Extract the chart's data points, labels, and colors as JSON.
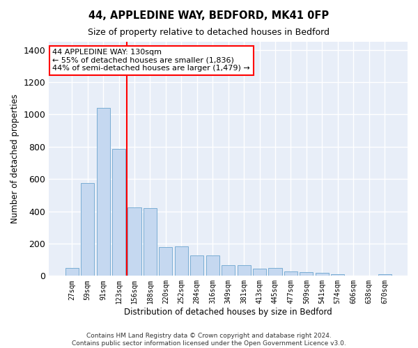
{
  "title": "44, APPLEDINE WAY, BEDFORD, MK41 0FP",
  "subtitle": "Size of property relative to detached houses in Bedford",
  "xlabel": "Distribution of detached houses by size in Bedford",
  "ylabel": "Number of detached properties",
  "categories": [
    "27sqm",
    "59sqm",
    "91sqm",
    "123sqm",
    "156sqm",
    "188sqm",
    "220sqm",
    "252sqm",
    "284sqm",
    "316sqm",
    "349sqm",
    "381sqm",
    "413sqm",
    "445sqm",
    "477sqm",
    "509sqm",
    "541sqm",
    "574sqm",
    "606sqm",
    "638sqm",
    "670sqm"
  ],
  "values": [
    47,
    573,
    1040,
    785,
    425,
    420,
    178,
    182,
    125,
    125,
    65,
    65,
    45,
    48,
    27,
    22,
    18,
    12,
    0,
    0,
    10
  ],
  "bar_color": "#c5d8f0",
  "bar_edge_color": "#7aadd4",
  "bg_color": "#e8eef8",
  "grid_color": "#ffffff",
  "vline_x": 3.5,
  "vline_color": "red",
  "annotation_text": "44 APPLEDINE WAY: 130sqm\n← 55% of detached houses are smaller (1,836)\n44% of semi-detached houses are larger (1,479) →",
  "annotation_box_color": "white",
  "annotation_box_edge": "red",
  "ylim": [
    0,
    1450
  ],
  "yticks": [
    0,
    200,
    400,
    600,
    800,
    1000,
    1200,
    1400
  ],
  "footer": "Contains HM Land Registry data © Crown copyright and database right 2024.\nContains public sector information licensed under the Open Government Licence v3.0."
}
